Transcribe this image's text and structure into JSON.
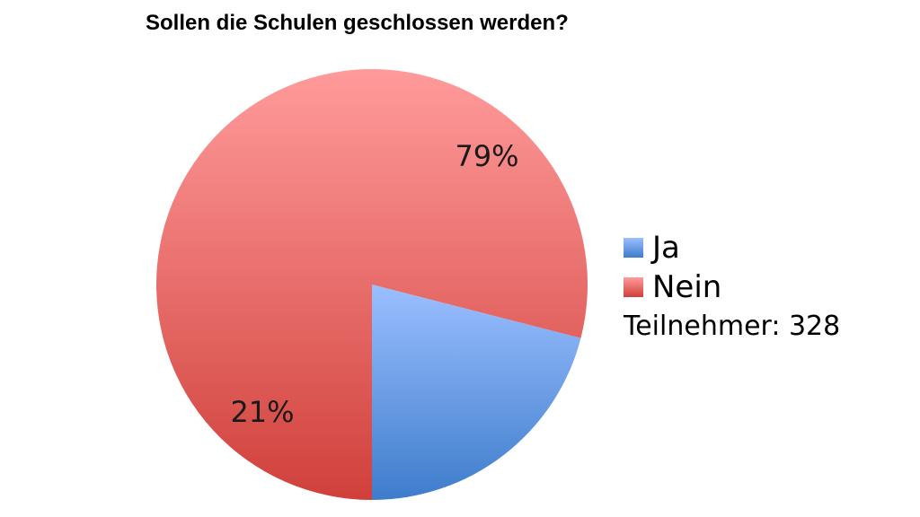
{
  "chart_data": {
    "type": "pie",
    "title": "Sollen die Schulen geschlossen werden?",
    "slices": [
      {
        "name": "Ja",
        "value": 21,
        "label": "21%",
        "color_top": "#9bbfff",
        "color_bottom": "#3e7ccc"
      },
      {
        "name": "Nein",
        "value": 79,
        "label": "79%",
        "color_top": "#ff9b9b",
        "color_bottom": "#d0403b"
      }
    ],
    "legend_position": "right",
    "participants_text": "Teilnehmer: 328"
  }
}
